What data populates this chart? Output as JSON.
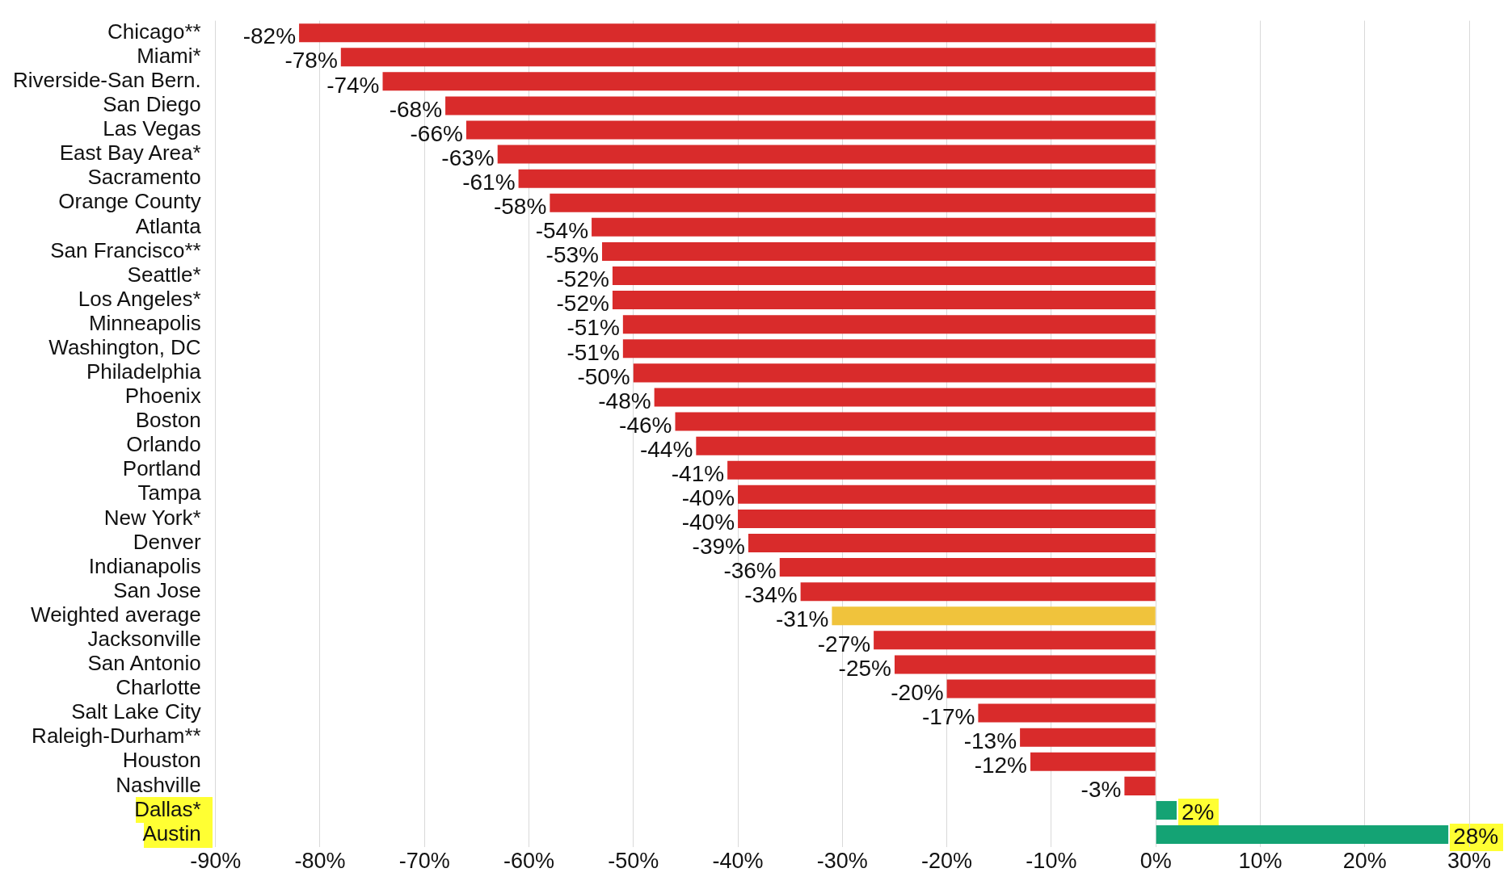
{
  "chart_data": {
    "type": "bar",
    "orientation": "horizontal",
    "categories": [
      "Chicago**",
      "Miami*",
      "Riverside-San Bern.",
      "San Diego",
      "Las Vegas",
      "East Bay Area*",
      "Sacramento",
      "Orange County",
      "Atlanta",
      "San Francisco**",
      "Seattle*",
      "Los Angeles*",
      "Minneapolis",
      "Washington, DC",
      "Philadelphia",
      "Phoenix",
      "Boston",
      "Orlando",
      "Portland",
      "Tampa",
      "New York*",
      "Denver",
      "Indianapolis",
      "San Jose",
      "Weighted average",
      "Jacksonville",
      "San Antonio",
      "Charlotte",
      "Salt Lake City",
      "Raleigh-Durham**",
      "Houston",
      "Nashville",
      "Dallas*",
      "Austin"
    ],
    "values": [
      -82,
      -78,
      -74,
      -68,
      -66,
      -63,
      -61,
      -58,
      -54,
      -53,
      -52,
      -52,
      -51,
      -51,
      -50,
      -48,
      -46,
      -44,
      -41,
      -40,
      -40,
      -39,
      -36,
      -34,
      -31,
      -27,
      -25,
      -20,
      -17,
      -13,
      -12,
      -3,
      2,
      28
    ],
    "value_labels": [
      "-82%",
      "-78%",
      "-74%",
      "-68%",
      "-66%",
      "-63%",
      "-61%",
      "-58%",
      "-54%",
      "-53%",
      "-52%",
      "-52%",
      "-51%",
      "-51%",
      "-50%",
      "-48%",
      "-46%",
      "-44%",
      "-41%",
      "-40%",
      "-40%",
      "-39%",
      "-36%",
      "-34%",
      "-31%",
      "-27%",
      "-25%",
      "-20%",
      "-17%",
      "-13%",
      "-12%",
      "-3%",
      "2%",
      "28%"
    ],
    "colors": [
      "#d92b2b",
      "#d92b2b",
      "#d92b2b",
      "#d92b2b",
      "#d92b2b",
      "#d92b2b",
      "#d92b2b",
      "#d92b2b",
      "#d92b2b",
      "#d92b2b",
      "#d92b2b",
      "#d92b2b",
      "#d92b2b",
      "#d92b2b",
      "#d92b2b",
      "#d92b2b",
      "#d92b2b",
      "#d92b2b",
      "#d92b2b",
      "#d92b2b",
      "#d92b2b",
      "#d92b2b",
      "#d92b2b",
      "#d92b2b",
      "#f0c33c",
      "#d92b2b",
      "#d92b2b",
      "#d92b2b",
      "#d92b2b",
      "#d92b2b",
      "#d92b2b",
      "#d92b2b",
      "#14a374",
      "#14a374"
    ],
    "xlim": [
      -90,
      30
    ],
    "xticks": [
      {
        "value": -90,
        "label": "-90%"
      },
      {
        "value": -80,
        "label": "-80%"
      },
      {
        "value": -70,
        "label": "-70%"
      },
      {
        "value": -60,
        "label": "-60%"
      },
      {
        "value": -50,
        "label": "-50%"
      },
      {
        "value": -40,
        "label": "-40%"
      },
      {
        "value": -30,
        "label": "-30%"
      },
      {
        "value": -20,
        "label": "-20%"
      },
      {
        "value": -10,
        "label": "-10%"
      },
      {
        "value": 0,
        "label": "0%"
      },
      {
        "value": 10,
        "label": "10%"
      },
      {
        "value": 20,
        "label": "20%"
      },
      {
        "value": 30,
        "label": "30%"
      }
    ],
    "grid": "x",
    "legend": false
  }
}
